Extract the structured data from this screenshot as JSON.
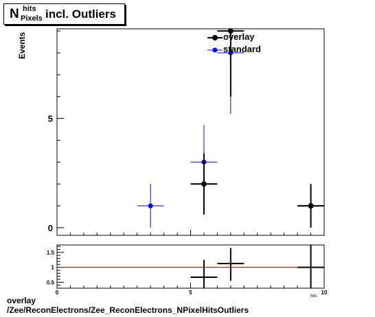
{
  "title": {
    "main": "N",
    "sup": "hits",
    "sub": "Pixels",
    "rest": "incl. Outliers"
  },
  "ylabel": "Events",
  "footer": {
    "line1": "overlay",
    "line2": "/Zee/ReconElectrons/Zee_ReconElectrons_NPixelHitsOutliers"
  },
  "xunit_label": "hits",
  "colors": {
    "overlay": "#000000",
    "standard": "#0000ff",
    "ratio_line": "#990000"
  },
  "chart_data": [
    {
      "type": "scatter",
      "xlim": [
        0,
        10
      ],
      "ylim": [
        -0.35,
        9.1
      ],
      "yticks": [
        0,
        5
      ],
      "ytick_labels": [
        "0",
        "5"
      ],
      "legend": {
        "placement": "top-right",
        "entries": [
          "overlay",
          "standard"
        ]
      },
      "series": [
        {
          "name": "overlay",
          "color": "#000000",
          "points": [
            {
              "x": 5.5,
              "y": 2,
              "xerr": 0.5,
              "ylo": 0.6,
              "yhi": 3.4
            },
            {
              "x": 6.5,
              "y": 9,
              "xerr": 0.5,
              "ylo": 6.0,
              "yhi": 12.0
            },
            {
              "x": 9.5,
              "y": 1,
              "xerr": 0.5,
              "ylo": 0.0,
              "yhi": 2.0
            }
          ]
        },
        {
          "name": "standard",
          "color": "#0000ff",
          "points": [
            {
              "x": 3.5,
              "y": 1,
              "xerr": 0.5,
              "ylo": 0.0,
              "yhi": 2.0
            },
            {
              "x": 5.5,
              "y": 3,
              "xerr": 0.5,
              "ylo": 1.3,
              "yhi": 4.7
            },
            {
              "x": 6.5,
              "y": 8,
              "xerr": 0.5,
              "ylo": 5.2,
              "yhi": 10.8
            }
          ]
        }
      ]
    },
    {
      "type": "ratio",
      "xlim": [
        0,
        10
      ],
      "ylim": [
        0.3,
        1.75
      ],
      "yticks": [
        0.5,
        1,
        1.5
      ],
      "ytick_labels": [
        "0.5",
        "1",
        "1.5"
      ],
      "xticks": [
        0,
        5,
        10
      ],
      "xtick_labels": [
        "0",
        "5",
        "10"
      ],
      "reference": 1,
      "points": [
        {
          "x": 5.5,
          "y": 0.667,
          "xerr": 0.5,
          "ylo": 0.1,
          "yhi": 1.25
        },
        {
          "x": 6.5,
          "y": 1.125,
          "xerr": 0.5,
          "ylo": 0.55,
          "yhi": 1.65
        },
        {
          "x": 9.5,
          "y": 1.0,
          "xerr": 0.5,
          "ylo": 0.0,
          "yhi": 2.0
        }
      ]
    }
  ]
}
